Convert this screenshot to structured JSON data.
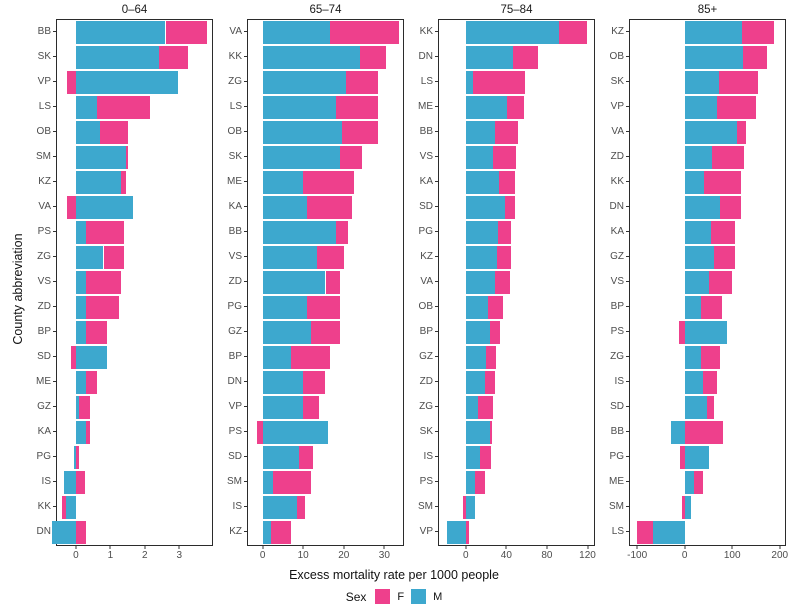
{
  "figure": {
    "x_axis_title": "Excess mortality rate per 1000 people",
    "y_axis_title": "County abbreviation",
    "legend": {
      "title": "Sex",
      "f_label": "F",
      "m_label": "M"
    }
  },
  "chart_data": {
    "type": "bar",
    "orientation": "horizontal",
    "stacked": true,
    "grid": "off",
    "legend_position": "bottom",
    "xlabel": "Excess mortality rate per 1000 people",
    "ylabel": "County abbreviation",
    "series_names": [
      "F",
      "M"
    ],
    "colors": {
      "F": "#EE408C",
      "M": "#3DA8CE"
    },
    "facets": [
      {
        "title": "0–64",
        "xlim": [
          -0.55,
          3.95
        ],
        "xticks": [
          0,
          1,
          2,
          3
        ],
        "rows": [
          {
            "label": "BB",
            "M": 2.6,
            "F": 1.2
          },
          {
            "label": "SK",
            "M": 2.4,
            "F": 0.85
          },
          {
            "label": "VP",
            "M": 2.95,
            "F": -0.25
          },
          {
            "label": "LS",
            "M": 0.6,
            "F": 1.55
          },
          {
            "label": "OB",
            "M": 0.7,
            "F": 0.8
          },
          {
            "label": "SM",
            "M": 1.45,
            "F": 0.05
          },
          {
            "label": "KZ",
            "M": 1.3,
            "F": 0.15
          },
          {
            "label": "VA",
            "M": 1.65,
            "F": -0.25
          },
          {
            "label": "PS",
            "M": 0.3,
            "F": 1.1
          },
          {
            "label": "ZG",
            "M": 0.8,
            "F": 0.6
          },
          {
            "label": "VS",
            "M": 0.3,
            "F": 1.0
          },
          {
            "label": "ZD",
            "M": 0.3,
            "F": 0.95
          },
          {
            "label": "BP",
            "M": 0.3,
            "F": 0.6
          },
          {
            "label": "SD",
            "M": 0.9,
            "F": -0.15
          },
          {
            "label": "ME",
            "M": 0.3,
            "F": 0.3
          },
          {
            "label": "GZ",
            "M": 0.1,
            "F": 0.3
          },
          {
            "label": "KA",
            "M": 0.3,
            "F": 0.1
          },
          {
            "label": "PG",
            "M": -0.07,
            "F": 0.1
          },
          {
            "label": "IS",
            "M": -0.35,
            "F": 0.25
          },
          {
            "label": "KK",
            "M": -0.3,
            "F": -0.1
          },
          {
            "label": "DN",
            "M": -0.7,
            "F": 0.3
          }
        ]
      },
      {
        "title": "65–74",
        "xlim": [
          -3.6,
          34.6
        ],
        "xticks": [
          0,
          10,
          20,
          30
        ],
        "rows": [
          {
            "label": "VA",
            "M": 16.5,
            "F": 17
          },
          {
            "label": "KK",
            "M": 24,
            "F": 6.5
          },
          {
            "label": "ZG",
            "M": 20.5,
            "F": 8
          },
          {
            "label": "LS",
            "M": 18,
            "F": 10.5
          },
          {
            "label": "OB",
            "M": 19.5,
            "F": 9
          },
          {
            "label": "SK",
            "M": 19,
            "F": 5.5
          },
          {
            "label": "ME",
            "M": 10,
            "F": 12.5
          },
          {
            "label": "KA",
            "M": 11,
            "F": 11
          },
          {
            "label": "BB",
            "M": 18,
            "F": 3
          },
          {
            "label": "VS",
            "M": 13.5,
            "F": 6.5
          },
          {
            "label": "ZD",
            "M": 15.5,
            "F": 3.5
          },
          {
            "label": "PG",
            "M": 11,
            "F": 8
          },
          {
            "label": "GZ",
            "M": 12,
            "F": 7
          },
          {
            "label": "BP",
            "M": 7,
            "F": 9.5
          },
          {
            "label": "DN",
            "M": 10,
            "F": 5.5
          },
          {
            "label": "VP",
            "M": 10,
            "F": 4
          },
          {
            "label": "PS",
            "M": 16,
            "F": -1.5
          },
          {
            "label": "SD",
            "M": 9,
            "F": 3.5
          },
          {
            "label": "SM",
            "M": 2.5,
            "F": 9.5
          },
          {
            "label": "IS",
            "M": 8.5,
            "F": 2
          },
          {
            "label": "KZ",
            "M": 2,
            "F": 5
          }
        ]
      },
      {
        "title": "75–84",
        "xlim": [
          -26.4,
          126.4
        ],
        "xticks": [
          0,
          40,
          80,
          120
        ],
        "rows": [
          {
            "label": "KK",
            "M": 92,
            "F": 28
          },
          {
            "label": "DN",
            "M": 47,
            "F": 24
          },
          {
            "label": "LS",
            "M": 7,
            "F": 51
          },
          {
            "label": "ME",
            "M": 41,
            "F": 16
          },
          {
            "label": "BB",
            "M": 29,
            "F": 22
          },
          {
            "label": "VS",
            "M": 27,
            "F": 23
          },
          {
            "label": "KA",
            "M": 33,
            "F": 16
          },
          {
            "label": "SD",
            "M": 39,
            "F": 10
          },
          {
            "label": "PG",
            "M": 32,
            "F": 13
          },
          {
            "label": "KZ",
            "M": 31,
            "F": 14
          },
          {
            "label": "VA",
            "M": 29,
            "F": 15
          },
          {
            "label": "OB",
            "M": 22,
            "F": 15
          },
          {
            "label": "BP",
            "M": 24,
            "F": 10
          },
          {
            "label": "GZ",
            "M": 20,
            "F": 10
          },
          {
            "label": "ZD",
            "M": 19,
            "F": 10
          },
          {
            "label": "ZG",
            "M": 12,
            "F": 15
          },
          {
            "label": "SK",
            "M": 24,
            "F": 2
          },
          {
            "label": "IS",
            "M": 14,
            "F": 11
          },
          {
            "label": "PS",
            "M": 9,
            "F": 10
          },
          {
            "label": "SM",
            "M": 9,
            "F": -2.5
          },
          {
            "label": "VP",
            "M": -19,
            "F": 3
          }
        ]
      },
      {
        "title": "85+",
        "xlim": [
          -115,
          211
        ],
        "xticks": [
          -100,
          0,
          100,
          200
        ],
        "rows": [
          {
            "label": "KZ",
            "M": 120,
            "F": 68
          },
          {
            "label": "OB",
            "M": 122,
            "F": 52
          },
          {
            "label": "SK",
            "M": 72,
            "F": 83
          },
          {
            "label": "VP",
            "M": 69,
            "F": 82
          },
          {
            "label": "VA",
            "M": 111,
            "F": 18
          },
          {
            "label": "ZD",
            "M": 58,
            "F": 67
          },
          {
            "label": "KK",
            "M": 40,
            "F": 79
          },
          {
            "label": "DN",
            "M": 74,
            "F": 44
          },
          {
            "label": "KA",
            "M": 56,
            "F": 50
          },
          {
            "label": "GZ",
            "M": 62,
            "F": 43
          },
          {
            "label": "VS",
            "M": 51,
            "F": 49
          },
          {
            "label": "BP",
            "M": 35,
            "F": 44
          },
          {
            "label": "PS",
            "M": 89,
            "F": -12
          },
          {
            "label": "ZG",
            "M": 35,
            "F": 40
          },
          {
            "label": "IS",
            "M": 38,
            "F": 30
          },
          {
            "label": "SD",
            "M": 46,
            "F": 15
          },
          {
            "label": "BB",
            "M": -28,
            "F": 81
          },
          {
            "label": "PG",
            "M": 51,
            "F": -9
          },
          {
            "label": "ME",
            "M": 20,
            "F": 19
          },
          {
            "label": "SM",
            "M": 13,
            "F": -5
          },
          {
            "label": "LS",
            "M": -67,
            "F": -33
          }
        ]
      }
    ]
  }
}
